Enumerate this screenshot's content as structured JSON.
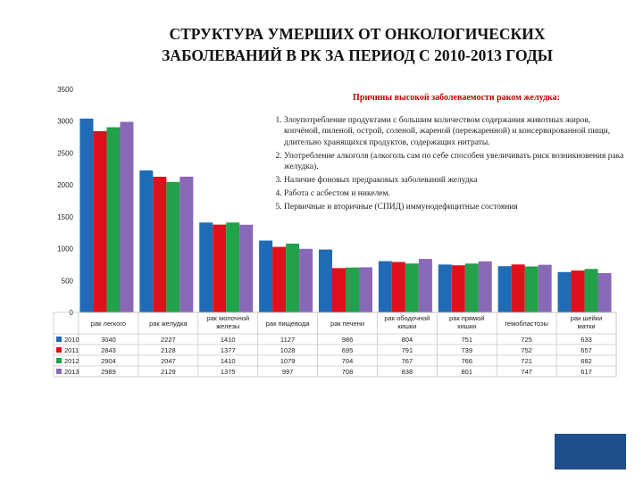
{
  "title_lines": [
    "СТРУКТУРА УМЕРШИХ ОТ ОНКОЛОГИЧЕСКИХ",
    "ЗАБОЛЕВАНИЙ В РК ЗА ПЕРИОД С 2010-2013 ГОДЫ"
  ],
  "reasons": {
    "title": "Причины высокой заболеваемости раком желудка:",
    "items": [
      "Злоупотребление продуктами с большим количеством содержания животных жиров, копчёной, пиленой, острой, соленой, жареной (пережаренной) и консервированной пищи, длительно хранящихся продуктов, содержащих нитраты.",
      "Употребление алкоголя (алкоголь сам по себе способен увеличивать риск возникновения рака желудка).",
      "Наличие фоновых предраковых заболеваний желудка",
      "Работа с асбестом и никелем.",
      "Первичные и вторичные (СПИД) иммунодефицитные состояния"
    ]
  },
  "chart_data": {
    "type": "bar",
    "title": "",
    "xlabel": "",
    "ylabel": "",
    "ylim": [
      0,
      3500
    ],
    "yticks": [
      0,
      500,
      1000,
      1500,
      2000,
      2500,
      3000,
      3500
    ],
    "grid": false,
    "legend": "data-table-left",
    "categories": [
      "рак легкого",
      "рак желудка",
      "рак молочной железы",
      "рак пищевода",
      "рак печени",
      "рак ободочной кишки",
      "рак прямой кишки",
      "гемобластозы",
      "рак шейки матки"
    ],
    "series": [
      {
        "name": "2010",
        "color": "#1f6bb5",
        "values": [
          3040,
          2227,
          1410,
          1127,
          986,
          804,
          751,
          725,
          633
        ]
      },
      {
        "name": "2011",
        "color": "#e0101a",
        "values": [
          2843,
          2128,
          1377,
          1028,
          695,
          791,
          739,
          752,
          657
        ]
      },
      {
        "name": "2012",
        "color": "#22a04a",
        "values": [
          2904,
          2047,
          1410,
          1079,
          704,
          767,
          766,
          721,
          682
        ]
      },
      {
        "name": "2013",
        "color": "#8a68b8",
        "values": [
          2989,
          2129,
          1375,
          997,
          708,
          838,
          801,
          747,
          617
        ]
      }
    ]
  }
}
